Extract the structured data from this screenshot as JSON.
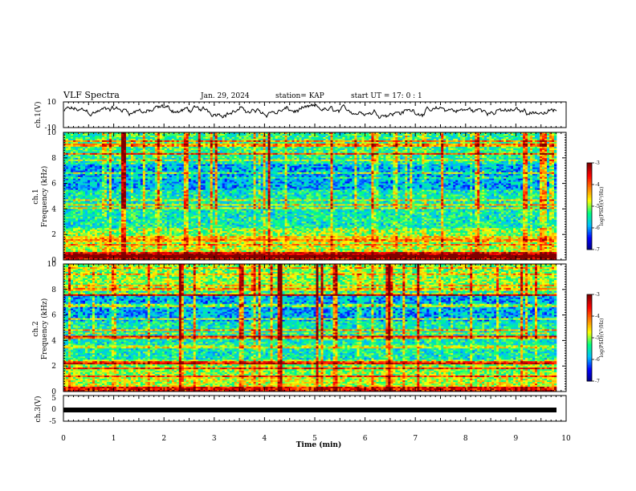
{
  "header": {
    "title": "VLF Spectra",
    "date": "Jan. 29, 2024",
    "station": "station= KAP",
    "start_ut": "start  UT =   17: 0  : 1"
  },
  "colors": {
    "waveform": "#000000",
    "colormap": [
      "#00007f",
      "#0000ff",
      "#00bfff",
      "#00ff7f",
      "#ffff00",
      "#ff7f00",
      "#ff0000",
      "#7f0000"
    ]
  },
  "chart_data": [
    {
      "type": "line",
      "name": "ch1-waveform",
      "ylabel": "ch.1(V)",
      "ylim": [
        -10,
        10
      ],
      "yticks": [
        "10",
        "-10"
      ],
      "xlim": [
        0,
        10
      ],
      "y_mean_approx": 3,
      "note_values": "dense noisy waveform, roughly between 0 and 7 V"
    },
    {
      "type": "heatmap",
      "name": "ch1-spectrogram",
      "ylabel": "ch.1\nFrequency (kHz)",
      "ylabel_lines": [
        "ch.1",
        "Frequency (kHz)"
      ],
      "ylim": [
        0,
        10
      ],
      "yticks": [
        "0",
        "2",
        "4",
        "6",
        "8",
        "10"
      ],
      "xlim": [
        0,
        9.8
      ],
      "colorbar": {
        "label": "log(PSD)(V²/Hz)",
        "range": [
          -7,
          -3
        ],
        "ticks": [
          "-3",
          "-4",
          "-5",
          "-6",
          "-7"
        ]
      }
    },
    {
      "type": "heatmap",
      "name": "ch2-spectrogram",
      "ylabel_lines": [
        "ch.2",
        "Frequency (kHz)"
      ],
      "ylim": [
        0,
        10
      ],
      "yticks": [
        "0",
        "2",
        "4",
        "6",
        "8",
        "10"
      ],
      "xlim": [
        0,
        9.8
      ],
      "colorbar": {
        "label": "log(PSD)(V²/Hz)",
        "range": [
          -7,
          -3
        ],
        "ticks": [
          "-3",
          "-4",
          "-5",
          "-6",
          "-7"
        ]
      }
    },
    {
      "type": "line",
      "name": "ch3-waveform",
      "ylabel": "ch.3(V)",
      "ylim": [
        -5,
        5
      ],
      "yticks": [
        "5",
        "0",
        "-5"
      ],
      "xlim": [
        0,
        9.8
      ],
      "y_mean_approx": -2,
      "xlabel": "Time  (min)",
      "xticks": [
        "0",
        "1",
        "2",
        "3",
        "4",
        "5",
        "6",
        "7",
        "8",
        "9",
        "10"
      ]
    }
  ]
}
